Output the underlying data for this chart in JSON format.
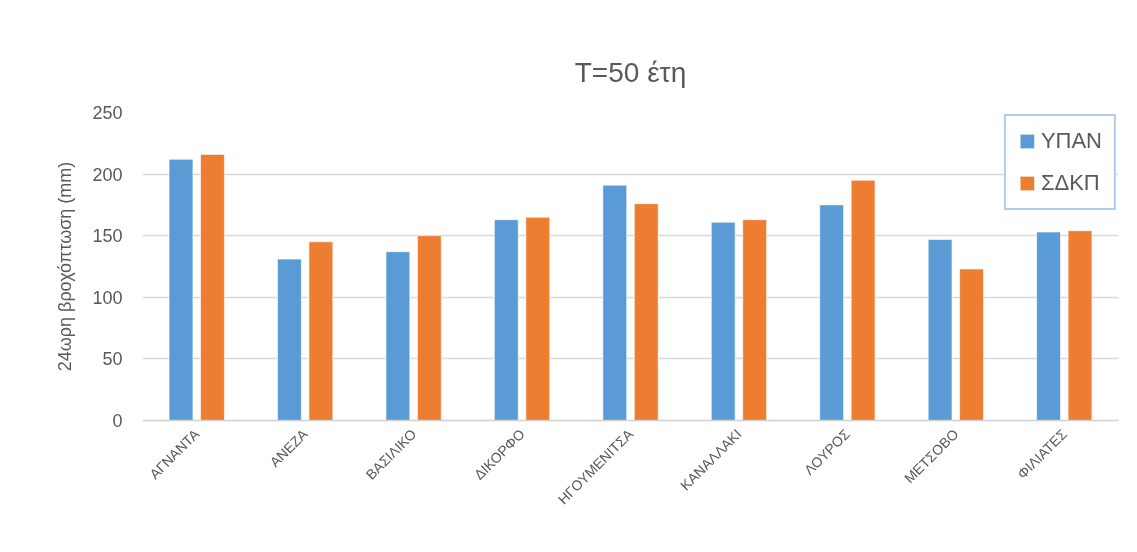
{
  "chart_data": {
    "type": "bar",
    "title": "T=50 έτη",
    "ylabel": "24ωρη βροχόπτωση (mm)",
    "categories": [
      "ΑΓΝΑΝΤΑ",
      "ΑΝΕΖΑ",
      "ΒΑΣΙΛΙΚΟ",
      "ΔΙΚΟΡΦΟ",
      "ΗΓΟΥΜΕΝΙΤΣΑ",
      "ΚΑΝΑΛΛΑΚΙ",
      "ΛΟΥΡΟΣ",
      "ΜΕΤΣΟΒΟ",
      "ΦΙΛΙΑΤΕΣ"
    ],
    "series": [
      {
        "name": "ΥΠΑΝ",
        "color": "#5b9bd5",
        "values": [
          212,
          131,
          137,
          163,
          191,
          161,
          175,
          147,
          153
        ]
      },
      {
        "name": "ΣΔΚΠ",
        "color": "#ed7d31",
        "values": [
          216,
          145,
          150,
          165,
          176,
          163,
          195,
          123,
          154
        ]
      }
    ],
    "ylim": [
      0,
      250
    ],
    "yticks": [
      0,
      50,
      100,
      150,
      200,
      250
    ],
    "grid": "y",
    "legend": "top right"
  }
}
